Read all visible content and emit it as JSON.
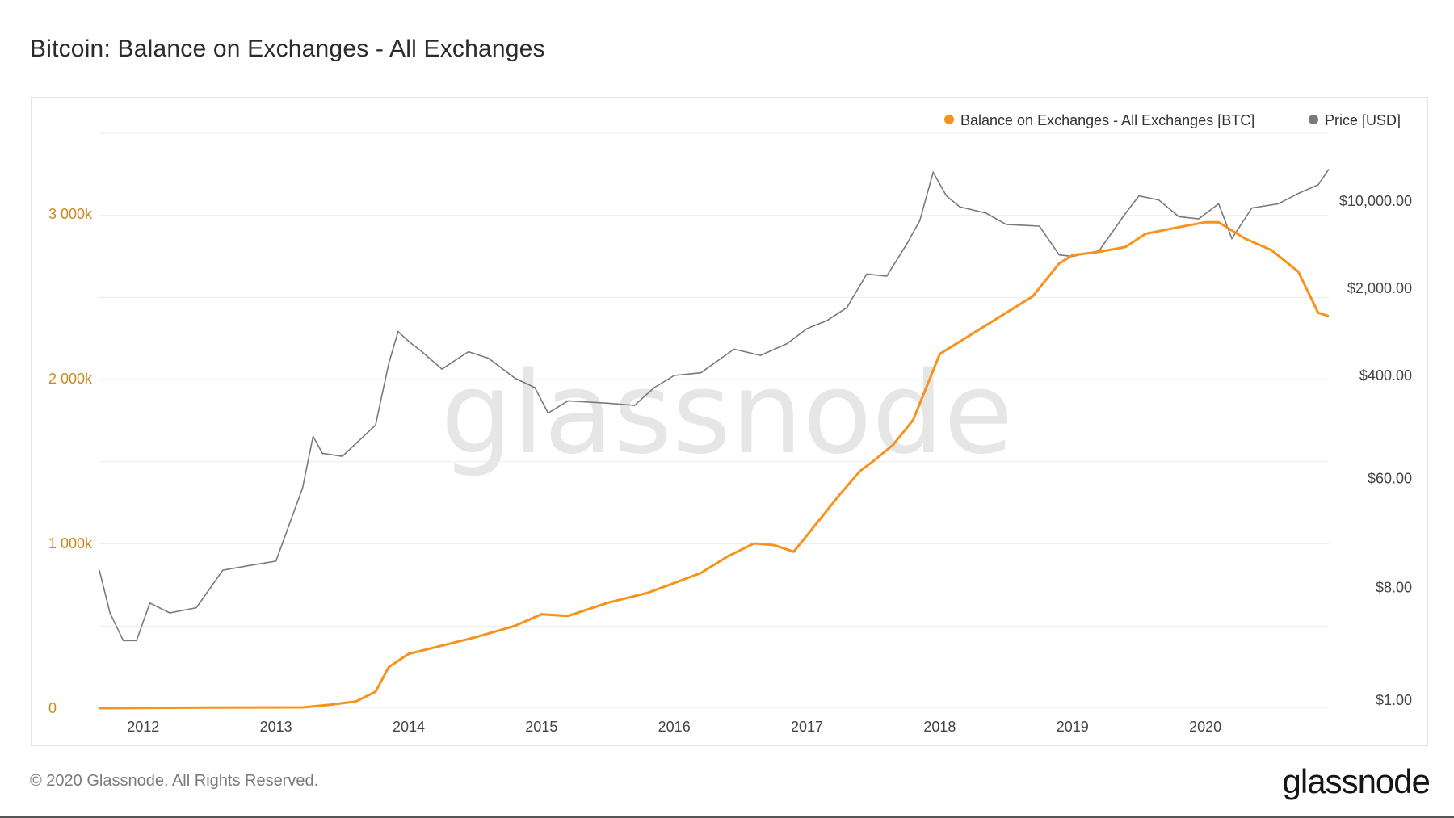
{
  "title": "Bitcoin: Balance on Exchanges - All Exchanges",
  "watermark": "glassnode",
  "footer": {
    "copyright": "© 2020 Glassnode. All Rights Reserved.",
    "logo": "glassnode"
  },
  "colors": {
    "balance": "#f7931a",
    "price": "#7a7a7a",
    "left_axis": "#c98a1e",
    "grid": "#ececec",
    "watermark": "#e6e6e6"
  },
  "chart_data": {
    "type": "line",
    "title": "Bitcoin: Balance on Exchanges - All Exchanges",
    "x_ticks": [
      "2012",
      "2013",
      "2014",
      "2015",
      "2016",
      "2017",
      "2018",
      "2019",
      "2020"
    ],
    "x_range": [
      2011.67,
      2020.93
    ],
    "y_left": {
      "ticks": [
        0,
        1000000,
        2000000,
        3000000
      ],
      "tick_labels": [
        "0",
        "1 000k",
        "2 000k",
        "3 000k"
      ],
      "range": [
        0,
        3500000
      ]
    },
    "y_right": {
      "scale": "log",
      "ticks": [
        1,
        8,
        60,
        400,
        2000,
        10000
      ],
      "tick_labels": [
        "$1.00",
        "$8.00",
        "$60.00",
        "$400.00",
        "$2,000.00",
        "$10,000.00"
      ]
    },
    "legend": {
      "position": "top-right"
    },
    "grid": true,
    "series": [
      {
        "name": "Balance on Exchanges - All Exchanges [BTC]",
        "axis": "left",
        "points": [
          [
            2011.67,
            0
          ],
          [
            2012.5,
            4000
          ],
          [
            2013.2,
            5000
          ],
          [
            2013.4,
            20000
          ],
          [
            2013.6,
            40000
          ],
          [
            2013.75,
            100000
          ],
          [
            2013.85,
            250000
          ],
          [
            2014.0,
            330000
          ],
          [
            2014.3,
            390000
          ],
          [
            2014.5,
            430000
          ],
          [
            2014.8,
            500000
          ],
          [
            2015.0,
            570000
          ],
          [
            2015.2,
            560000
          ],
          [
            2015.5,
            640000
          ],
          [
            2015.8,
            700000
          ],
          [
            2016.0,
            760000
          ],
          [
            2016.2,
            820000
          ],
          [
            2016.4,
            920000
          ],
          [
            2016.6,
            1000000
          ],
          [
            2016.75,
            990000
          ],
          [
            2016.9,
            950000
          ],
          [
            2017.0,
            1050000
          ],
          [
            2017.1,
            1150000
          ],
          [
            2017.25,
            1300000
          ],
          [
            2017.4,
            1440000
          ],
          [
            2017.5,
            1500000
          ],
          [
            2017.65,
            1600000
          ],
          [
            2017.8,
            1750000
          ],
          [
            2017.9,
            1950000
          ],
          [
            2018.0,
            2150000
          ],
          [
            2018.1,
            2200000
          ],
          [
            2018.3,
            2300000
          ],
          [
            2018.5,
            2400000
          ],
          [
            2018.7,
            2500000
          ],
          [
            2018.9,
            2700000
          ],
          [
            2019.0,
            2750000
          ],
          [
            2019.2,
            2770000
          ],
          [
            2019.4,
            2800000
          ],
          [
            2019.55,
            2880000
          ],
          [
            2019.8,
            2920000
          ],
          [
            2020.0,
            2950000
          ],
          [
            2020.1,
            2950000
          ],
          [
            2020.3,
            2850000
          ],
          [
            2020.5,
            2780000
          ],
          [
            2020.7,
            2650000
          ],
          [
            2020.85,
            2400000
          ],
          [
            2020.93,
            2380000
          ]
        ]
      },
      {
        "name": "Price [USD]",
        "axis": "right",
        "points": [
          [
            2011.67,
            11
          ],
          [
            2011.75,
            5
          ],
          [
            2011.85,
            3
          ],
          [
            2011.95,
            3
          ],
          [
            2012.05,
            6
          ],
          [
            2012.2,
            5
          ],
          [
            2012.4,
            5.5
          ],
          [
            2012.6,
            11
          ],
          [
            2012.8,
            12
          ],
          [
            2013.0,
            13
          ],
          [
            2013.2,
            50
          ],
          [
            2013.28,
            130
          ],
          [
            2013.35,
            95
          ],
          [
            2013.5,
            90
          ],
          [
            2013.75,
            160
          ],
          [
            2013.85,
            500
          ],
          [
            2013.92,
            900
          ],
          [
            2014.0,
            750
          ],
          [
            2014.1,
            620
          ],
          [
            2014.25,
            450
          ],
          [
            2014.45,
            620
          ],
          [
            2014.6,
            550
          ],
          [
            2014.8,
            380
          ],
          [
            2014.95,
            320
          ],
          [
            2015.05,
            200
          ],
          [
            2015.2,
            250
          ],
          [
            2015.5,
            240
          ],
          [
            2015.7,
            230
          ],
          [
            2015.85,
            320
          ],
          [
            2016.0,
            400
          ],
          [
            2016.2,
            420
          ],
          [
            2016.45,
            650
          ],
          [
            2016.65,
            580
          ],
          [
            2016.85,
            720
          ],
          [
            2017.0,
            950
          ],
          [
            2017.15,
            1100
          ],
          [
            2017.3,
            1400
          ],
          [
            2017.45,
            2600
          ],
          [
            2017.6,
            2500
          ],
          [
            2017.75,
            4500
          ],
          [
            2017.85,
            7000
          ],
          [
            2017.95,
            17000
          ],
          [
            2018.05,
            11000
          ],
          [
            2018.15,
            9000
          ],
          [
            2018.35,
            8000
          ],
          [
            2018.5,
            6500
          ],
          [
            2018.75,
            6300
          ],
          [
            2018.9,
            3700
          ],
          [
            2019.0,
            3600
          ],
          [
            2019.2,
            4000
          ],
          [
            2019.4,
            8000
          ],
          [
            2019.5,
            11000
          ],
          [
            2019.65,
            10200
          ],
          [
            2019.8,
            7500
          ],
          [
            2019.95,
            7200
          ],
          [
            2020.1,
            9500
          ],
          [
            2020.2,
            5000
          ],
          [
            2020.35,
            8800
          ],
          [
            2020.55,
            9500
          ],
          [
            2020.7,
            11500
          ],
          [
            2020.85,
            13500
          ],
          [
            2020.93,
            18000
          ]
        ]
      }
    ]
  }
}
